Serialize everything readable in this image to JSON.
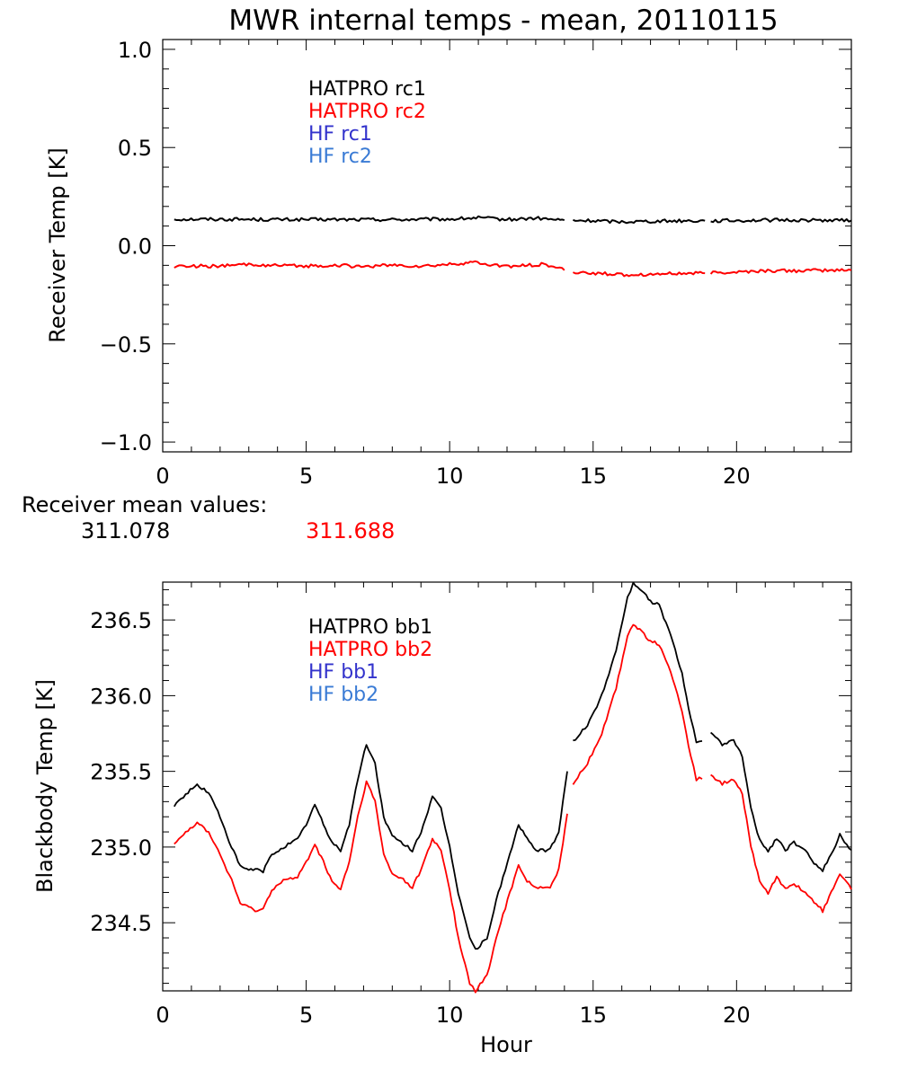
{
  "title": "MWR internal temps - mean, 20110115",
  "receiver_means": {
    "label": "Receiver mean values:",
    "values": [
      {
        "text": "311.078",
        "color": "#000000"
      },
      {
        "text": "311.688",
        "color": "#ff0000"
      }
    ]
  },
  "chart_data": [
    {
      "type": "line",
      "title": "MWR internal temps - mean, 20110115",
      "xlabel": "",
      "ylabel": "Receiver Temp [K]",
      "xlim": [
        0,
        24
      ],
      "ylim": [
        -1.05,
        1.05
      ],
      "x_ticks": [
        "0",
        "5",
        "10",
        "15",
        "20"
      ],
      "x_tick_values": [
        0,
        5,
        10,
        15,
        20
      ],
      "y_ticks": [
        "1.0",
        "0.5",
        "0.0",
        "−0.5",
        "−1.0"
      ],
      "y_tick_values": [
        1.0,
        0.5,
        0.0,
        -0.5,
        -1.0
      ],
      "legend": [
        {
          "name": "HATPRO rc1",
          "color": "#000000"
        },
        {
          "name": "HATPRO rc2",
          "color": "#ff0000"
        },
        {
          "name": "HF rc1",
          "color": "#3333cc"
        },
        {
          "name": "HF rc2",
          "color": "#3a7bd5"
        }
      ],
      "series": [
        {
          "name": "HATPRO rc1",
          "color": "#000000",
          "noise": 0.004,
          "segments": [
            [
              [
                0.4,
                0.135
              ],
              [
                2,
                0.135
              ],
              [
                4,
                0.133
              ],
              [
                6,
                0.133
              ],
              [
                8,
                0.133
              ],
              [
                10,
                0.135
              ],
              [
                11,
                0.142
              ],
              [
                12,
                0.133
              ],
              [
                13,
                0.14
              ],
              [
                13.7,
                0.132
              ],
              [
                14.0,
                0.13
              ]
            ],
            [
              [
                14.3,
                0.128
              ],
              [
                15,
                0.127
              ],
              [
                16,
                0.122
              ],
              [
                17,
                0.125
              ],
              [
                18,
                0.127
              ],
              [
                18.9,
                0.127
              ]
            ],
            [
              [
                19.1,
                0.127
              ],
              [
                20,
                0.128
              ],
              [
                21,
                0.13
              ],
              [
                22,
                0.13
              ],
              [
                23,
                0.13
              ],
              [
                24,
                0.128
              ]
            ]
          ]
        },
        {
          "name": "HATPRO rc2",
          "color": "#ff0000",
          "noise": 0.004,
          "segments": [
            [
              [
                0.4,
                -0.105
              ],
              [
                1,
                -0.103
              ],
              [
                2,
                -0.105
              ],
              [
                3,
                -0.095
              ],
              [
                4,
                -0.102
              ],
              [
                5,
                -0.104
              ],
              [
                6,
                -0.1
              ],
              [
                7,
                -0.106
              ],
              [
                8,
                -0.1
              ],
              [
                9,
                -0.105
              ],
              [
                10,
                -0.096
              ],
              [
                10.8,
                -0.085
              ],
              [
                11.5,
                -0.1
              ],
              [
                12.3,
                -0.105
              ],
              [
                13.2,
                -0.095
              ],
              [
                13.7,
                -0.11
              ],
              [
                14.0,
                -0.125
              ]
            ],
            [
              [
                14.3,
                -0.135
              ],
              [
                15,
                -0.14
              ],
              [
                16,
                -0.148
              ],
              [
                17,
                -0.145
              ],
              [
                18,
                -0.142
              ],
              [
                18.9,
                -0.14
              ]
            ],
            [
              [
                19.1,
                -0.138
              ],
              [
                20,
                -0.134
              ],
              [
                21,
                -0.128
              ],
              [
                22,
                -0.128
              ],
              [
                23,
                -0.126
              ],
              [
                24,
                -0.125
              ]
            ]
          ]
        }
      ]
    },
    {
      "type": "line",
      "title": "",
      "xlabel": "Hour",
      "ylabel": "Blackbody Temp [K]",
      "xlim": [
        0,
        24
      ],
      "ylim": [
        234.05,
        236.75
      ],
      "x_ticks": [
        "0",
        "5",
        "10",
        "15",
        "20"
      ],
      "x_tick_values": [
        0,
        5,
        10,
        15,
        20
      ],
      "y_ticks": [
        "236.5",
        "236.0",
        "235.5",
        "235.0",
        "234.5"
      ],
      "y_tick_values": [
        236.5,
        236.0,
        235.5,
        235.0,
        234.5
      ],
      "legend": [
        {
          "name": "HATPRO bb1",
          "color": "#000000"
        },
        {
          "name": "HATPRO bb2",
          "color": "#ff0000"
        },
        {
          "name": "HF bb1",
          "color": "#3333cc"
        },
        {
          "name": "HF bb2",
          "color": "#3a7bd5"
        }
      ],
      "series": [
        {
          "name": "HATPRO bb1",
          "color": "#000000",
          "noise": 0.004,
          "segments": [
            [
              [
                0.4,
                235.27
              ],
              [
                0.8,
                235.35
              ],
              [
                1.2,
                235.41
              ],
              [
                1.6,
                235.36
              ],
              [
                2.0,
                235.2
              ],
              [
                2.4,
                235.0
              ],
              [
                2.7,
                234.87
              ],
              [
                3.0,
                234.85
              ],
              [
                3.3,
                234.85
              ],
              [
                3.5,
                234.84
              ],
              [
                3.8,
                234.95
              ],
              [
                4.2,
                235.0
              ],
              [
                4.7,
                235.05
              ],
              [
                5.0,
                235.15
              ],
              [
                5.3,
                235.28
              ],
              [
                5.6,
                235.15
              ],
              [
                5.9,
                235.03
              ],
              [
                6.2,
                234.98
              ],
              [
                6.5,
                235.15
              ],
              [
                6.8,
                235.45
              ],
              [
                7.1,
                235.68
              ],
              [
                7.4,
                235.55
              ],
              [
                7.7,
                235.2
              ],
              [
                8.0,
                235.07
              ],
              [
                8.3,
                235.03
              ],
              [
                8.7,
                234.98
              ],
              [
                9.0,
                235.1
              ],
              [
                9.4,
                235.33
              ],
              [
                9.7,
                235.25
              ],
              [
                10.0,
                235.0
              ],
              [
                10.3,
                234.7
              ],
              [
                10.7,
                234.4
              ],
              [
                10.9,
                234.32
              ],
              [
                11.3,
                234.4
              ],
              [
                11.7,
                234.7
              ],
              [
                12.1,
                234.95
              ],
              [
                12.4,
                235.15
              ],
              [
                12.7,
                235.05
              ],
              [
                13.0,
                234.98
              ],
              [
                13.5,
                234.98
              ],
              [
                13.8,
                235.1
              ],
              [
                14.1,
                235.5
              ]
            ],
            [
              [
                14.3,
                235.7
              ],
              [
                14.8,
                235.8
              ],
              [
                15.3,
                236.0
              ],
              [
                15.8,
                236.3
              ],
              [
                16.2,
                236.65
              ],
              [
                16.4,
                236.74
              ],
              [
                16.7,
                236.7
              ],
              [
                17.0,
                236.62
              ],
              [
                17.3,
                236.6
              ],
              [
                17.7,
                236.4
              ],
              [
                18.1,
                236.15
              ],
              [
                18.4,
                235.85
              ],
              [
                18.6,
                235.7
              ],
              [
                18.8,
                235.7
              ]
            ],
            [
              [
                19.1,
                235.75
              ],
              [
                19.5,
                235.68
              ],
              [
                19.9,
                235.7
              ],
              [
                20.2,
                235.6
              ],
              [
                20.5,
                235.25
              ],
              [
                20.8,
                235.05
              ],
              [
                21.1,
                234.97
              ],
              [
                21.4,
                235.06
              ],
              [
                21.7,
                234.98
              ],
              [
                22.0,
                235.03
              ],
              [
                22.4,
                234.97
              ],
              [
                22.7,
                234.9
              ],
              [
                23.0,
                234.85
              ],
              [
                23.3,
                234.95
              ],
              [
                23.6,
                235.08
              ],
              [
                24.0,
                234.98
              ]
            ]
          ]
        },
        {
          "name": "HATPRO bb2",
          "color": "#ff0000",
          "noise": 0.004,
          "segments": [
            [
              [
                0.4,
                235.03
              ],
              [
                0.8,
                235.1
              ],
              [
                1.2,
                235.16
              ],
              [
                1.6,
                235.1
              ],
              [
                2.0,
                234.95
              ],
              [
                2.4,
                234.78
              ],
              [
                2.7,
                234.63
              ],
              [
                3.0,
                234.6
              ],
              [
                3.3,
                234.58
              ],
              [
                3.5,
                234.59
              ],
              [
                3.8,
                234.72
              ],
              [
                4.2,
                234.78
              ],
              [
                4.7,
                234.8
              ],
              [
                5.0,
                234.9
              ],
              [
                5.3,
                235.02
              ],
              [
                5.6,
                234.9
              ],
              [
                5.9,
                234.77
              ],
              [
                6.2,
                234.72
              ],
              [
                6.5,
                234.9
              ],
              [
                6.8,
                235.2
              ],
              [
                7.1,
                235.43
              ],
              [
                7.4,
                235.3
              ],
              [
                7.7,
                234.95
              ],
              [
                8.0,
                234.82
              ],
              [
                8.3,
                234.8
              ],
              [
                8.7,
                234.73
              ],
              [
                9.0,
                234.85
              ],
              [
                9.4,
                235.05
              ],
              [
                9.7,
                234.98
              ],
              [
                10.0,
                234.72
              ],
              [
                10.3,
                234.4
              ],
              [
                10.7,
                234.1
              ],
              [
                10.9,
                234.05
              ],
              [
                11.3,
                234.15
              ],
              [
                11.7,
                234.45
              ],
              [
                12.1,
                234.7
              ],
              [
                12.4,
                234.88
              ],
              [
                12.7,
                234.78
              ],
              [
                13.0,
                234.73
              ],
              [
                13.5,
                234.73
              ],
              [
                13.8,
                234.85
              ],
              [
                14.1,
                235.22
              ]
            ],
            [
              [
                14.3,
                235.42
              ],
              [
                14.8,
                235.55
              ],
              [
                15.3,
                235.75
              ],
              [
                15.8,
                236.05
              ],
              [
                16.2,
                236.4
              ],
              [
                16.4,
                236.47
              ],
              [
                16.7,
                236.42
              ],
              [
                17.0,
                236.36
              ],
              [
                17.3,
                236.34
              ],
              [
                17.7,
                236.15
              ],
              [
                18.1,
                235.9
              ],
              [
                18.4,
                235.6
              ],
              [
                18.6,
                235.45
              ],
              [
                18.8,
                235.45
              ]
            ],
            [
              [
                19.1,
                235.48
              ],
              [
                19.5,
                235.42
              ],
              [
                19.9,
                235.44
              ],
              [
                20.2,
                235.35
              ],
              [
                20.5,
                235.0
              ],
              [
                20.8,
                234.78
              ],
              [
                21.1,
                234.7
              ],
              [
                21.4,
                234.8
              ],
              [
                21.7,
                234.72
              ],
              [
                22.0,
                234.76
              ],
              [
                22.4,
                234.7
              ],
              [
                22.7,
                234.63
              ],
              [
                23.0,
                234.58
              ],
              [
                23.3,
                234.7
              ],
              [
                23.6,
                234.83
              ],
              [
                24.0,
                234.72
              ]
            ]
          ]
        }
      ]
    }
  ]
}
